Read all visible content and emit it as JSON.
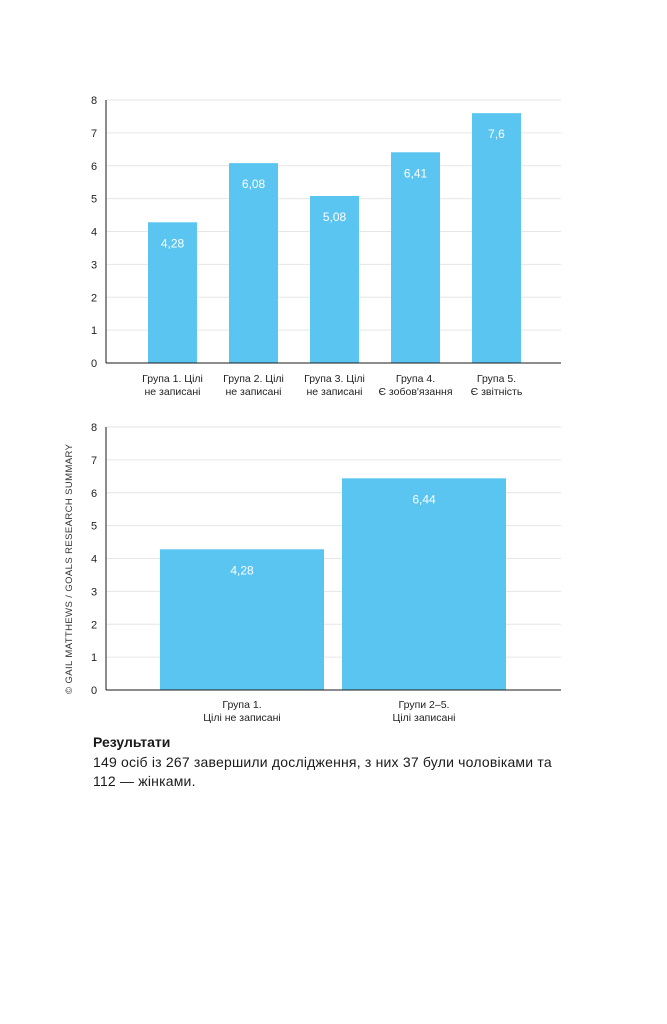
{
  "credit": "© GAIL MATTHEWS / GOALS RESEARCH SUMMARY",
  "results": {
    "title": "Результати",
    "text": "149 осіб із 267 завершили дослідження, з них 37 були чоловіками та 112 — жінками."
  },
  "colors": {
    "bar": "#5bc5f1",
    "label": "#ffffff",
    "axis": "#1a1a1a",
    "grid": "#e6e6e6"
  },
  "chart_data": [
    {
      "type": "bar",
      "categories": [
        [
          "Група 1. Цілі",
          "не записані"
        ],
        [
          "Група 2. Цілі",
          "не записані"
        ],
        [
          "Група 3. Цілі",
          "не записані"
        ],
        [
          "Група 4.",
          "Є зобов'язання"
        ],
        [
          "Група 5.",
          "Є звітність"
        ]
      ],
      "values": [
        4.28,
        6.08,
        5.08,
        6.41,
        7.6
      ],
      "value_labels": [
        "4,28",
        "6,08",
        "5,08",
        "6,41",
        "7,6"
      ],
      "yticks": [
        "0",
        "1",
        "2",
        "3",
        "4",
        "5",
        "6",
        "7",
        "8"
      ],
      "ylim": [
        0,
        8
      ],
      "grid": true,
      "legend": "none",
      "title": "",
      "xlabel": "",
      "ylabel": ""
    },
    {
      "type": "bar",
      "categories": [
        [
          "Група 1.",
          "Цілі не записані"
        ],
        [
          "Групи 2–5.",
          "Цілі записані"
        ]
      ],
      "values": [
        4.28,
        6.44
      ],
      "value_labels": [
        "4,28",
        "6,44"
      ],
      "yticks": [
        "0",
        "1",
        "2",
        "3",
        "4",
        "5",
        "6",
        "7",
        "8"
      ],
      "ylim": [
        0,
        8
      ],
      "grid": true,
      "legend": "none",
      "title": "",
      "xlabel": "",
      "ylabel": ""
    }
  ]
}
